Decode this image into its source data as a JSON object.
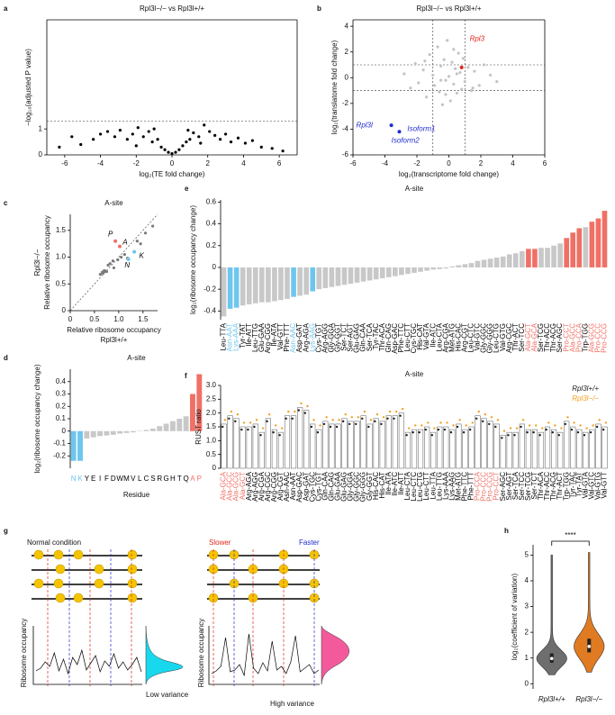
{
  "panel_labels": [
    "a",
    "b",
    "c",
    "d",
    "e",
    "f",
    "g",
    "h"
  ],
  "chart_data": [
    {
      "type": "scatter",
      "title": "Rpl3l−/− vs Rpl3l+/+",
      "xlabel": "log₂(TE fold change)",
      "ylabel": "−log₁₀(adjusted P value)",
      "frame": true,
      "xlim": [
        -7,
        7
      ],
      "xticks": [
        -6,
        -4,
        -2,
        0,
        2,
        4,
        6
      ],
      "ylim": [
        0,
        5.2
      ],
      "yticks": [
        0,
        1
      ],
      "hlines": [
        1.3
      ],
      "series": [
        {
          "color": "#000000",
          "x": [
            -6.3,
            -5.6,
            -5.1,
            -4.4,
            -4.0,
            -3.6,
            -3.2,
            -2.9,
            -2.5,
            -2.2,
            -1.9,
            -1.6,
            -1.3,
            -1.1,
            -0.8,
            -0.6,
            -0.4,
            -0.2,
            0,
            0.2,
            0.4,
            0.6,
            0.8,
            1.0,
            1.2,
            1.5,
            1.8,
            2.1,
            2.4,
            2.7,
            3.0,
            3.3,
            3.7,
            4.1,
            4.5,
            5.0,
            5.6,
            6.2,
            -1.0,
            0.9,
            -2.0,
            1.6
          ],
          "values": [
            0.3,
            0.7,
            0.4,
            0.6,
            0.8,
            0.9,
            0.7,
            0.95,
            0.6,
            0.8,
            1.05,
            0.7,
            0.9,
            0.5,
            0.6,
            0.3,
            0.2,
            0.1,
            0.05,
            0.1,
            0.2,
            0.35,
            0.5,
            0.6,
            0.85,
            0.7,
            1.15,
            0.9,
            0.75,
            0.6,
            0.8,
            0.5,
            0.65,
            0.45,
            0.55,
            0.3,
            0.25,
            0.15,
            1.0,
            0.95,
            0.35,
            0.45
          ]
        }
      ]
    },
    {
      "type": "scatter",
      "title": "Rpl3l−/− vs Rpl3l+/+",
      "xlabel": "log₂(transcriptome fold change)",
      "ylabel": "log₂(translatome fold change)",
      "frame": true,
      "xlim": [
        -6,
        6
      ],
      "xticks": [
        -6,
        -4,
        -2,
        0,
        2,
        4,
        6
      ],
      "ylim": [
        -6,
        4.5
      ],
      "yticks": [
        -6,
        -4,
        -2,
        0,
        2,
        4
      ],
      "hlines": [
        -1,
        1
      ],
      "vlines": [
        -1,
        1
      ],
      "series": [
        {
          "color": "#c4c4c4",
          "x": [
            -2.8,
            -2.4,
            -2.1,
            -1.9,
            -1.6,
            -1.4,
            -1.2,
            -1.0,
            -0.9,
            -0.7,
            -0.6,
            -0.5,
            -0.4,
            -0.3,
            -0.2,
            -0.1,
            0,
            0.1,
            0.2,
            0.3,
            0.4,
            0.5,
            0.6,
            0.7,
            0.8,
            0.9,
            1.0,
            1.2,
            1.4,
            1.6,
            1.9,
            2.2,
            2.6,
            3.0,
            -0.5,
            0.5,
            -1.5,
            1.5,
            -0.2,
            0.3
          ],
          "values": [
            0.3,
            -0.8,
            1.1,
            -0.4,
            0.6,
            -1.5,
            1.8,
            0.2,
            -0.6,
            2.4,
            -1.1,
            0.9,
            -2.1,
            1.4,
            -0.2,
            2.9,
            0.1,
            -1.8,
            1.2,
            -0.5,
            0.7,
            -1.2,
            1.9,
            0.4,
            -0.9,
            1.5,
            -0.3,
            0.8,
            -1.0,
            0.5,
            -0.6,
            1.0,
            0.2,
            -0.3,
            -0.2,
            0.3,
            1.3,
            -0.8,
            -1.3,
            2.2
          ]
        },
        {
          "color": "#e0261c",
          "x": [
            0.8
          ],
          "values": [
            0.8
          ]
        },
        {
          "color": "#1f2bd0",
          "x": [
            -3.6,
            -3.1
          ],
          "values": [
            -3.7,
            -4.2
          ]
        }
      ],
      "annotations": [
        {
          "text": "Rpl3",
          "x": 1.3,
          "y": 3.0,
          "color": "#e0261c"
        },
        {
          "text": "Rpl3l",
          "x": -5.8,
          "y": -3.7,
          "color": "#1f2bd0"
        },
        {
          "text": "Isoform1",
          "x": -2.6,
          "y": -4.0,
          "color": "#1f2bd0"
        },
        {
          "text": "Isoform2",
          "x": -3.6,
          "y": -4.9,
          "color": "#1f2bd0"
        }
      ]
    },
    {
      "type": "scatter",
      "title": "A-site",
      "xlabel": [
        "Relative ribosome occupancy",
        "Rpl3l+/+"
      ],
      "ylabel": [
        "Relative ribosome occupancy",
        "Rpl3l−/−"
      ],
      "diagonal": true,
      "xlim": [
        0,
        1.8
      ],
      "xticks": [
        0,
        0.5,
        {
          "value": 1,
          "label": "1.0"
        },
        1.5
      ],
      "ylim": [
        0,
        1.8
      ],
      "yticks": [
        0,
        0.5,
        {
          "value": 1,
          "label": "1.0"
        },
        1.5
      ],
      "series": [
        {
          "color": "#7a7a7a",
          "x": [
            0.62,
            0.66,
            0.68,
            0.72,
            0.75,
            0.78,
            0.82,
            0.88,
            0.98,
            1.05,
            1.12,
            1.18,
            1.38,
            1.45,
            1.55,
            1.7,
            0.7,
            0.9
          ],
          "values": [
            0.68,
            0.72,
            0.7,
            0.74,
            0.73,
            0.85,
            0.88,
            0.93,
            0.95,
            1.0,
            1.05,
            0.98,
            1.3,
            1.25,
            1.45,
            1.58,
            0.75,
            0.8
          ]
        },
        {
          "color": "#f07066",
          "x": [
            0.93,
            1.02
          ],
          "values": [
            1.3,
            1.2
          ]
        },
        {
          "color": "#6ec6ee",
          "x": [
            1.2,
            1.32
          ],
          "values": [
            0.96,
            1.1
          ]
        }
      ],
      "annotations": [
        {
          "text": "P",
          "x": 0.78,
          "y": 1.42,
          "color": "#000"
        },
        {
          "text": "A",
          "x": 1.08,
          "y": 1.27,
          "color": "#000"
        },
        {
          "text": "N",
          "x": 1.12,
          "y": 0.84,
          "color": "#000"
        },
        {
          "text": "K",
          "x": 1.42,
          "y": 1.02,
          "color": "#000"
        }
      ]
    },
    {
      "type": "bar",
      "title": "A-site",
      "xlabel": "Residue",
      "ylabel": "log₂(ribosome occupancy change)",
      "color": "#c8c8c8",
      "ylim": [
        -0.3,
        0.5
      ],
      "yticks": [
        -0.2,
        -0.1,
        0,
        0.1,
        0.2,
        0.3,
        0.4
      ],
      "categories": [
        "N",
        "K",
        "Y",
        "E",
        "I",
        "F",
        "D",
        "W",
        "M",
        "V",
        "L",
        "C",
        "S",
        "R",
        "G",
        "H",
        "T",
        "Q",
        "A",
        "P"
      ],
      "values": [
        -0.24,
        -0.24,
        -0.06,
        -0.05,
        -0.04,
        -0.035,
        -0.03,
        -0.02,
        -0.015,
        -0.01,
        0.003,
        0.01,
        0.02,
        0.04,
        0.06,
        0.08,
        0.1,
        0.12,
        0.3,
        0.46
      ],
      "colors": [
        "#6ec6ee",
        "#6ec6ee",
        "#c8c8c8",
        "#c8c8c8",
        "#c8c8c8",
        "#c8c8c8",
        "#c8c8c8",
        "#c8c8c8",
        "#c8c8c8",
        "#c8c8c8",
        "#c8c8c8",
        "#c8c8c8",
        "#c8c8c8",
        "#c8c8c8",
        "#c8c8c8",
        "#c8c8c8",
        "#c8c8c8",
        "#c8c8c8",
        "#f07066",
        "#f07066"
      ]
    },
    {
      "type": "bar",
      "title": "A-site",
      "ylabel": "log₂(ribosome occupancy change)",
      "color": "#c8c8c8",
      "ylim": [
        -0.48,
        0.62
      ],
      "yticks": [
        -0.4,
        -0.2,
        0,
        0.2,
        0.4,
        0.6
      ],
      "categories": [
        "Leu-TTA",
        "Asn-AAT",
        "Lys-AAA",
        "Tyr-TAT",
        "Ile-ATT",
        "Leu-TTG",
        "Glu-GAA",
        "Arg-CGG",
        "Ile-ATA",
        "Val-GTT",
        "Phe-TTT",
        "Asn-AAC",
        "Asp-GAT",
        "Arg-AGA",
        "Lys-AAG",
        "Cys-TGT",
        "Arg-AGG",
        "Gly-GGA",
        "Gly-GGT",
        "Ser-TCT",
        "Ser-AGT",
        "Glu-GAG",
        "Gln-CAA",
        "Ser-TCA",
        "Tyr-TAC",
        "Thr-ACA",
        "Gln-CAG",
        "Asp-GAC",
        "Phe-TTC",
        "Leu-CTT",
        "Cys-TGC",
        "His-CAT",
        "Val-GTA",
        "Ile-ATC",
        "Leu-CTA",
        "Arg-CGA",
        "Met-ATG",
        "His-CAC",
        "Arg-CGT",
        "Leu-CTC",
        "Val-GTC",
        "Gly-GGC",
        "Gly-GGG",
        "Leu-CTG",
        "Val-GTG",
        "Arg-CGC",
        "Thr-ACT",
        "Ser-TCC",
        "Ala-GCT",
        "Ala-GCA",
        "Ser-TCG",
        "Thr-ACC",
        "Thr-ACG",
        "Ser-AGC",
        "Pro-CCT",
        "Ala-GCC",
        "Pro-CCA",
        "Trp-TGG",
        "Ala-GCG",
        "Pro-CCC",
        "Pro-CCG"
      ],
      "values": [
        -0.45,
        -0.38,
        -0.37,
        -0.35,
        -0.34,
        -0.33,
        -0.32,
        -0.32,
        -0.31,
        -0.3,
        -0.29,
        -0.27,
        -0.26,
        -0.25,
        -0.22,
        -0.2,
        -0.19,
        -0.18,
        -0.17,
        -0.16,
        -0.15,
        -0.14,
        -0.13,
        -0.12,
        -0.11,
        -0.1,
        -0.09,
        -0.08,
        -0.07,
        -0.06,
        -0.05,
        -0.04,
        -0.03,
        -0.02,
        -0.015,
        -0.01,
        0.01,
        0.02,
        0.03,
        0.04,
        0.06,
        0.07,
        0.08,
        0.09,
        0.1,
        0.12,
        0.13,
        0.15,
        0.17,
        0.17,
        0.18,
        0.18,
        0.2,
        0.22,
        0.27,
        0.32,
        0.36,
        0.37,
        0.42,
        0.45,
        0.52
      ],
      "colors": [
        "#c8c8c8",
        "#6ec6ee",
        "#6ec6ee",
        "#c8c8c8",
        "#c8c8c8",
        "#c8c8c8",
        "#c8c8c8",
        "#c8c8c8",
        "#c8c8c8",
        "#c8c8c8",
        "#c8c8c8",
        "#6ec6ee",
        "#c8c8c8",
        "#c8c8c8",
        "#6ec6ee",
        "#c8c8c8",
        "#c8c8c8",
        "#c8c8c8",
        "#c8c8c8",
        "#c8c8c8",
        "#c8c8c8",
        "#c8c8c8",
        "#c8c8c8",
        "#c8c8c8",
        "#c8c8c8",
        "#c8c8c8",
        "#c8c8c8",
        "#c8c8c8",
        "#c8c8c8",
        "#c8c8c8",
        "#c8c8c8",
        "#c8c8c8",
        "#c8c8c8",
        "#c8c8c8",
        "#c8c8c8",
        "#c8c8c8",
        "#c8c8c8",
        "#c8c8c8",
        "#c8c8c8",
        "#c8c8c8",
        "#c8c8c8",
        "#c8c8c8",
        "#c8c8c8",
        "#c8c8c8",
        "#c8c8c8",
        "#c8c8c8",
        "#c8c8c8",
        "#c8c8c8",
        "#f07066",
        "#f07066",
        "#c8c8c8",
        "#c8c8c8",
        "#c8c8c8",
        "#c8c8c8",
        "#f07066",
        "#f07066",
        "#f07066",
        "#c8c8c8",
        "#f07066",
        "#f07066",
        "#f07066"
      ]
    },
    {
      "type": "bar",
      "title": "A-site",
      "ylabel": "RUST ratio",
      "color": "#ffffff",
      "ylim": [
        0,
        3.0
      ],
      "yticks": [
        0,
        0.5,
        {
          "value": 1,
          "label": "1.0"
        },
        1.5,
        {
          "value": 2,
          "label": "2.0"
        },
        2.5,
        {
          "value": 3,
          "label": "3.0"
        }
      ],
      "categories": [
        "Ala-GCA",
        "Ala-GCC",
        "Ala-GCG",
        "Ala-GCT",
        "Arg-AGA",
        "Arg-AGG",
        "Arg-CGA",
        "Arg-CGC",
        "Arg-CGG",
        "Arg-CGT",
        "Asn-AAC",
        "Asn-AAT",
        "Asp-GAC",
        "Asp-GAT",
        "Cys-TGC",
        "Cys-TGT",
        "Gln-CAA",
        "Gln-CAG",
        "Glu-GAA",
        "Glu-GAG",
        "Gly-GGA",
        "Gly-GGC",
        "Gly-GGG",
        "Gly-GGT",
        "His-CAC",
        "His-CAT",
        "Ile-ATA",
        "Ile-ATC",
        "Ile-ATT",
        "Leu-CTA",
        "Leu-CTC",
        "Leu-CTG",
        "Leu-CTT",
        "Leu-TTA",
        "Leu-TTG",
        "Lys-AAA",
        "Lys-AAG",
        "Met-ATG",
        "Phe-TTC",
        "Phe-TTT",
        "Pro-CCA",
        "Pro-CCC",
        "Pro-CCG",
        "Pro-CCT",
        "Ser-AGC",
        "Ser-AGT",
        "Ser-TCA",
        "Ser-TCC",
        "Ser-TCG",
        "Ser-TCT",
        "Thr-ACA",
        "Thr-ACC",
        "Thr-ACG",
        "Thr-ACT",
        "Trp-TGG",
        "Tyr-TAC",
        "Tyr-TAT",
        "Val-GTA",
        "Val-GTC",
        "Val-GTG",
        "Val-GTT"
      ],
      "values": [
        1.6,
        1.9,
        1.8,
        1.5,
        1.5,
        1.6,
        1.3,
        1.8,
        1.4,
        1.3,
        1.9,
        1.9,
        2.2,
        2.1,
        1.6,
        1.4,
        1.7,
        1.6,
        1.6,
        1.8,
        1.7,
        1.7,
        1.9,
        1.6,
        1.8,
        1.7,
        1.9,
        1.9,
        2.0,
        1.3,
        1.4,
        1.4,
        1.5,
        1.3,
        1.5,
        1.5,
        1.4,
        1.6,
        1.4,
        1.5,
        1.9,
        1.8,
        1.7,
        1.6,
        1.2,
        1.3,
        1.3,
        1.6,
        1.4,
        1.4,
        1.3,
        1.5,
        1.4,
        1.3,
        1.7,
        1.5,
        1.4,
        1.3,
        1.4,
        1.6,
        1.5
      ],
      "label_colors": [
        "#f07066",
        "#f07066",
        "#f07066",
        "#f07066",
        "#000000",
        "#000000",
        "#000000",
        "#000000",
        "#000000",
        "#000000",
        "#000000",
        "#000000",
        "#000000",
        "#000000",
        "#000000",
        "#000000",
        "#000000",
        "#000000",
        "#000000",
        "#000000",
        "#000000",
        "#000000",
        "#000000",
        "#000000",
        "#000000",
        "#000000",
        "#000000",
        "#000000",
        "#000000",
        "#000000",
        "#000000",
        "#000000",
        "#000000",
        "#000000",
        "#000000",
        "#000000",
        "#000000",
        "#000000",
        "#000000",
        "#000000",
        "#f07066",
        "#f07066",
        "#f07066",
        "#f07066",
        "#000000",
        "#000000",
        "#000000",
        "#000000",
        "#000000",
        "#000000",
        "#000000",
        "#000000",
        "#000000",
        "#000000",
        "#000000",
        "#000000",
        "#000000",
        "#000000",
        "#000000",
        "#000000",
        "#000000"
      ],
      "series": [
        {
          "name": "Rpl3l+/+",
          "color": "#222222",
          "values": [
            1.5,
            1.8,
            1.7,
            1.4,
            1.4,
            1.5,
            1.2,
            1.7,
            1.3,
            1.2,
            1.8,
            1.8,
            2.1,
            2.0,
            1.5,
            1.3,
            1.6,
            1.5,
            1.5,
            1.7,
            1.6,
            1.6,
            1.8,
            1.5,
            1.7,
            1.6,
            1.8,
            1.8,
            1.9,
            1.2,
            1.3,
            1.3,
            1.4,
            1.2,
            1.4,
            1.4,
            1.3,
            1.5,
            1.3,
            1.4,
            1.8,
            1.7,
            1.6,
            1.5,
            1.1,
            1.2,
            1.2,
            1.5,
            1.3,
            1.3,
            1.2,
            1.4,
            1.3,
            1.2,
            1.6,
            1.4,
            1.3,
            1.2,
            1.3,
            1.5,
            1.4
          ]
        },
        {
          "name": "Rpl3l−/−",
          "color": "#f0a020",
          "values": [
            1.75,
            2.05,
            1.95,
            1.65,
            1.65,
            1.75,
            1.45,
            1.95,
            1.55,
            1.45,
            2.05,
            2.05,
            2.35,
            2.25,
            1.75,
            1.55,
            1.85,
            1.75,
            1.75,
            1.95,
            1.85,
            1.85,
            2.05,
            1.75,
            1.95,
            1.85,
            2.05,
            2.05,
            2.15,
            1.45,
            1.55,
            1.55,
            1.65,
            1.45,
            1.65,
            1.65,
            1.55,
            1.75,
            1.55,
            1.65,
            2.05,
            1.95,
            1.85,
            1.75,
            1.35,
            1.45,
            1.45,
            1.75,
            1.55,
            1.55,
            1.45,
            1.65,
            1.55,
            1.45,
            1.85,
            1.65,
            1.55,
            1.45,
            1.55,
            1.75,
            1.65
          ]
        }
      ]
    },
    {
      "type": "violin",
      "ylabel": "log₂(coefficient of variation)",
      "significance": "****",
      "ylim": [
        -0.2,
        5.4
      ],
      "yticks": [
        0,
        1,
        2,
        3,
        4,
        5
      ],
      "categories": [
        "Rpl3l+/+",
        "Rpl3l−/−"
      ],
      "colors": [
        "#6e6e6e",
        "#e07b22"
      ],
      "min": [
        0.35,
        0.45
      ],
      "q1": [
        0.82,
        1.22
      ],
      "median": [
        0.98,
        1.45
      ],
      "q3": [
        1.18,
        1.75
      ],
      "max": [
        5.0,
        5.1
      ]
    }
  ],
  "diagram": {
    "normal": "Normal condition",
    "slower": "Slower",
    "faster": "Faster",
    "y_left": "Ribosome occupancy",
    "y_right": "Ribosome occupancy",
    "low": "Low variance",
    "high": "High variance"
  }
}
